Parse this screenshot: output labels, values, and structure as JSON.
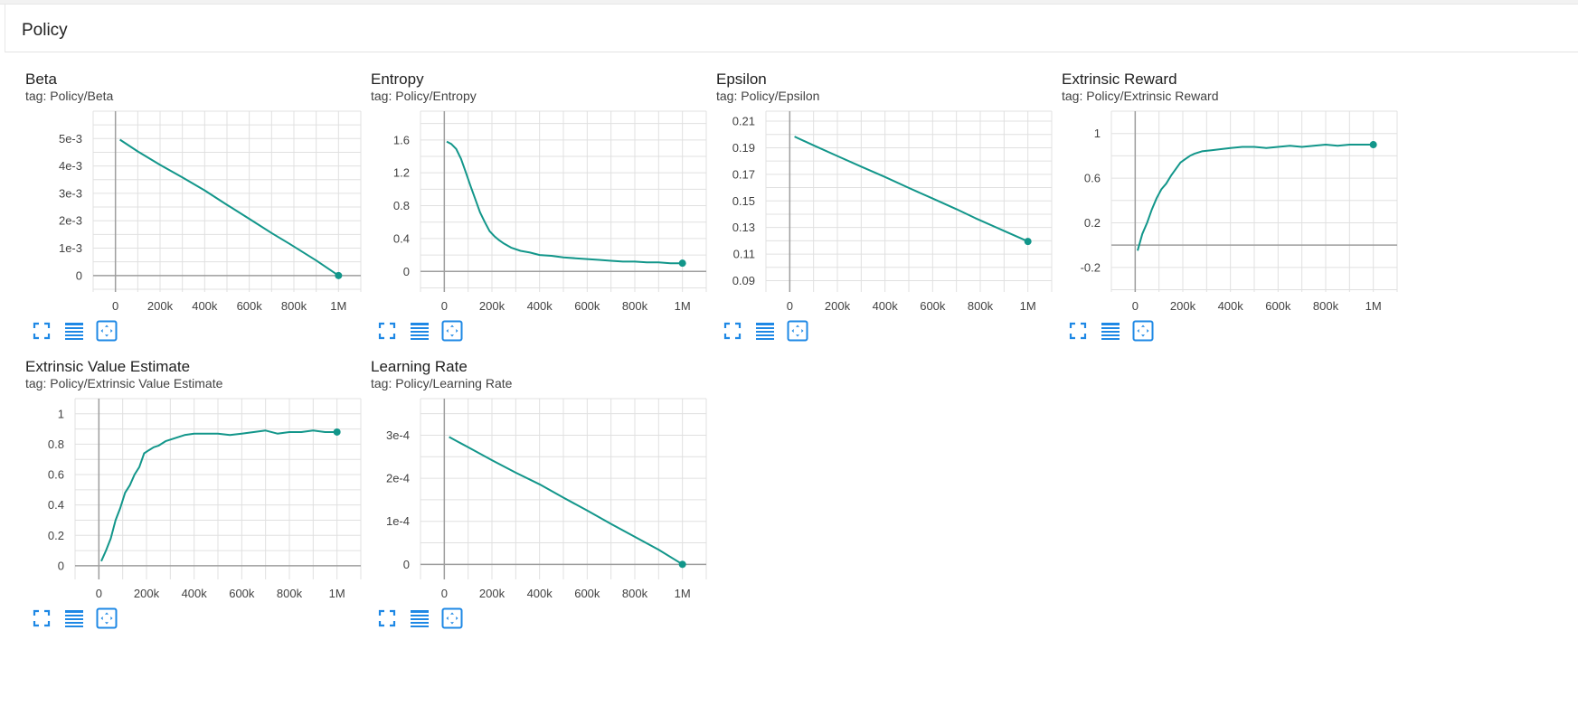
{
  "panel": {
    "title": "Policy"
  },
  "colors": {
    "line": "#12968a",
    "axis": "#9e9e9e",
    "grid": "#e0e0e0",
    "icon": "#1e88e5"
  },
  "icons": [
    "fullscreen-icon",
    "toggle-log-scale-icon",
    "fit-domain-icon"
  ],
  "charts": [
    {
      "title": "Beta",
      "tag": "tag: Policy/Beta",
      "chart_data": {
        "type": "line",
        "x": [
          20000,
          100000,
          200000,
          300000,
          400000,
          500000,
          600000,
          700000,
          780000,
          900000,
          1000000
        ],
        "y": [
          0.00496,
          0.00453,
          0.00404,
          0.00358,
          0.00311,
          0.00258,
          0.00207,
          0.00155,
          0.00116,
          0.00055,
          0.0
        ],
        "xlim": [
          -100000,
          1100000
        ],
        "ylim": [
          -0.0006,
          0.006
        ],
        "xticks": [
          0,
          200000,
          400000,
          600000,
          800000,
          1000000
        ],
        "xtick_labels": [
          "0",
          "200k",
          "400k",
          "600k",
          "800k",
          "1M"
        ],
        "yticks": [
          0,
          0.001,
          0.002,
          0.003,
          0.004,
          0.005
        ],
        "ytick_labels": [
          "0",
          "1e-3",
          "2e-3",
          "3e-3",
          "4e-3",
          "5e-3"
        ],
        "grid": true
      }
    },
    {
      "title": "Entropy",
      "tag": "tag: Policy/Entropy",
      "chart_data": {
        "type": "line",
        "x": [
          10000,
          30000,
          50000,
          70000,
          90000,
          110000,
          130000,
          150000,
          170000,
          190000,
          210000,
          230000,
          250000,
          280000,
          320000,
          360000,
          400000,
          450000,
          500000,
          550000,
          600000,
          650000,
          700000,
          750000,
          800000,
          850000,
          900000,
          950000,
          1000000
        ],
        "y": [
          1.58,
          1.55,
          1.49,
          1.37,
          1.21,
          1.04,
          0.88,
          0.72,
          0.6,
          0.49,
          0.43,
          0.38,
          0.34,
          0.29,
          0.25,
          0.23,
          0.2,
          0.19,
          0.17,
          0.16,
          0.15,
          0.14,
          0.13,
          0.12,
          0.12,
          0.11,
          0.11,
          0.1,
          0.1
        ],
        "xlim": [
          -100000,
          1100000
        ],
        "ylim": [
          -0.25,
          1.95
        ],
        "xticks": [
          0,
          200000,
          400000,
          600000,
          800000,
          1000000
        ],
        "xtick_labels": [
          "0",
          "200k",
          "400k",
          "600k",
          "800k",
          "1M"
        ],
        "yticks": [
          0,
          0.4,
          0.8,
          1.2,
          1.6
        ],
        "ytick_labels": [
          "0",
          "0.4",
          "0.8",
          "1.2",
          "1.6"
        ],
        "grid": true
      }
    },
    {
      "title": "Epsilon",
      "tag": "tag: Policy/Epsilon",
      "chart_data": {
        "type": "line",
        "x": [
          20000,
          100000,
          200000,
          300000,
          400000,
          500000,
          600000,
          700000,
          780000,
          900000,
          1000000
        ],
        "y": [
          0.1984,
          0.1918,
          0.1838,
          0.1758,
          0.168,
          0.1598,
          0.1518,
          0.1438,
          0.137,
          0.1275,
          0.1195
        ],
        "xlim": [
          -100000,
          1100000
        ],
        "ylim": [
          0.0815,
          0.2175
        ],
        "xticks": [
          0,
          200000,
          400000,
          600000,
          800000,
          1000000
        ],
        "xtick_labels": [
          "0",
          "200k",
          "400k",
          "600k",
          "800k",
          "1M"
        ],
        "yticks": [
          0.09,
          0.11,
          0.13,
          0.15,
          0.17,
          0.19,
          0.21
        ],
        "ytick_labels": [
          "0.09",
          "0.11",
          "0.13",
          "0.15",
          "0.17",
          "0.19",
          "0.21"
        ],
        "grid": true
      }
    },
    {
      "title": "Extrinsic Reward",
      "tag": "tag: Policy/Extrinsic Reward",
      "chart_data": {
        "type": "line",
        "x": [
          10000,
          30000,
          50000,
          70000,
          90000,
          110000,
          130000,
          150000,
          170000,
          190000,
          210000,
          230000,
          250000,
          280000,
          320000,
          360000,
          400000,
          450000,
          500000,
          550000,
          600000,
          650000,
          700000,
          750000,
          800000,
          850000,
          900000,
          950000,
          1000000
        ],
        "y": [
          -0.05,
          0.1,
          0.2,
          0.32,
          0.42,
          0.5,
          0.55,
          0.62,
          0.68,
          0.74,
          0.77,
          0.8,
          0.82,
          0.84,
          0.85,
          0.86,
          0.87,
          0.88,
          0.88,
          0.87,
          0.88,
          0.89,
          0.88,
          0.89,
          0.9,
          0.89,
          0.9,
          0.9,
          0.9
        ],
        "xlim": [
          -100000,
          1100000
        ],
        "ylim": [
          -0.42,
          1.2
        ],
        "xticks": [
          0,
          200000,
          400000,
          600000,
          800000,
          1000000
        ],
        "xtick_labels": [
          "0",
          "200k",
          "400k",
          "600k",
          "800k",
          "1M"
        ],
        "yticks": [
          -0.2,
          0.2,
          0.6,
          1
        ],
        "ytick_labels": [
          "-0.2",
          "0.2",
          "0.6",
          "1"
        ],
        "grid": true
      }
    },
    {
      "title": "Extrinsic Value Estimate",
      "tag": "tag: Policy/Extrinsic Value Estimate",
      "chart_data": {
        "type": "line",
        "x": [
          10000,
          30000,
          50000,
          70000,
          90000,
          110000,
          130000,
          150000,
          170000,
          190000,
          210000,
          230000,
          250000,
          280000,
          320000,
          360000,
          400000,
          450000,
          500000,
          550000,
          600000,
          650000,
          700000,
          750000,
          800000,
          850000,
          900000,
          950000,
          1000000
        ],
        "y": [
          0.03,
          0.1,
          0.18,
          0.3,
          0.38,
          0.48,
          0.53,
          0.6,
          0.65,
          0.74,
          0.76,
          0.78,
          0.79,
          0.82,
          0.84,
          0.86,
          0.87,
          0.87,
          0.87,
          0.86,
          0.87,
          0.88,
          0.89,
          0.87,
          0.88,
          0.88,
          0.89,
          0.88,
          0.88
        ],
        "xlim": [
          -100000,
          1100000
        ],
        "ylim": [
          -0.09,
          1.1
        ],
        "xticks": [
          0,
          200000,
          400000,
          600000,
          800000,
          1000000
        ],
        "xtick_labels": [
          "0",
          "200k",
          "400k",
          "600k",
          "800k",
          "1M"
        ],
        "yticks": [
          0,
          0.2,
          0.4,
          0.6,
          0.8,
          1
        ],
        "ytick_labels": [
          "0",
          "0.2",
          "0.4",
          "0.6",
          "0.8",
          "1"
        ],
        "grid": true
      }
    },
    {
      "title": "Learning Rate",
      "tag": "tag: Policy/Learning Rate",
      "chart_data": {
        "type": "line",
        "x": [
          20000,
          100000,
          200000,
          300000,
          400000,
          500000,
          600000,
          700000,
          780000,
          900000,
          1000000
        ],
        "y": [
          0.000296,
          0.000272,
          0.000242,
          0.000213,
          0.000186,
          0.000155,
          0.000125,
          9.4e-05,
          7e-05,
          3.4e-05,
          0.0
        ],
        "xlim": [
          -100000,
          1100000
        ],
        "ylim": [
          -3.5e-05,
          0.000385
        ],
        "xticks": [
          0,
          200000,
          400000,
          600000,
          800000,
          1000000
        ],
        "xtick_labels": [
          "0",
          "200k",
          "400k",
          "600k",
          "800k",
          "1M"
        ],
        "yticks": [
          0,
          0.0001,
          0.0002,
          0.0003
        ],
        "ytick_labels": [
          "0",
          "1e-4",
          "2e-4",
          "3e-4"
        ],
        "grid": true
      }
    }
  ]
}
